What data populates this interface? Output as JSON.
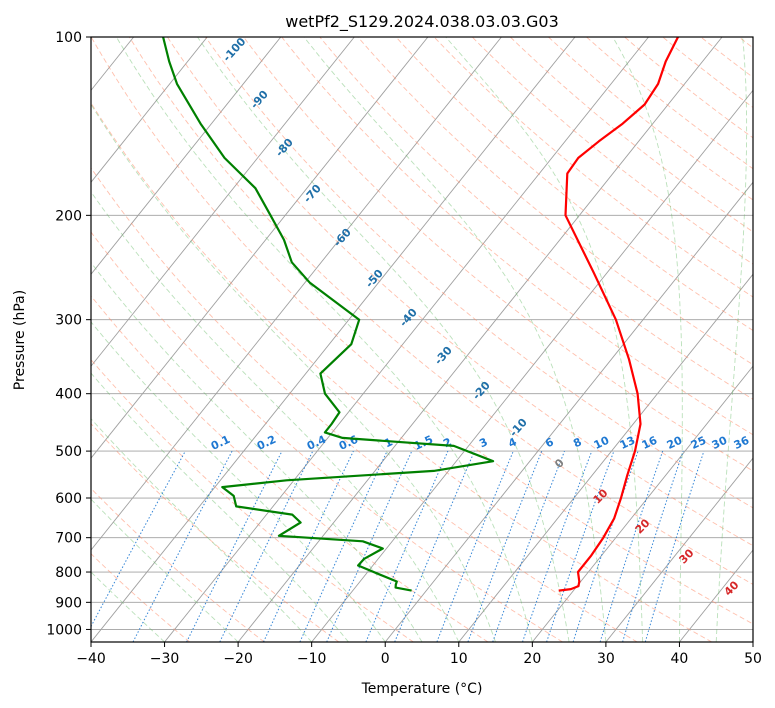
{
  "chart_data": {
    "type": "line",
    "title": "wetPf2_S129.2024.038.03.03.G03",
    "xlabel": "Temperature (°C)",
    "ylabel": "Pressure (hPa)",
    "xlim": [
      -40,
      50
    ],
    "ylim": [
      1050,
      100
    ],
    "y_scale": "log",
    "grid": true,
    "x_ticks": [
      -40,
      -30,
      -20,
      -10,
      0,
      10,
      20,
      30,
      40,
      50
    ],
    "y_ticks": [
      100,
      200,
      300,
      400,
      500,
      600,
      700,
      800,
      900,
      1000
    ],
    "series": [
      {
        "color": "#ff0000",
        "points": [
          {
            "p": 860,
            "t": 18.0
          },
          {
            "p": 855,
            "t": 19.5
          },
          {
            "p": 845,
            "t": 20.2
          },
          {
            "p": 830,
            "t": 19.8
          },
          {
            "p": 800,
            "t": 18.6
          },
          {
            "p": 750,
            "t": 18.6
          },
          {
            "p": 700,
            "t": 18.3
          },
          {
            "p": 650,
            "t": 17.7
          },
          {
            "p": 600,
            "t": 16.4
          },
          {
            "p": 550,
            "t": 14.8
          },
          {
            "p": 500,
            "t": 13.2
          },
          {
            "p": 450,
            "t": 11.0
          },
          {
            "p": 400,
            "t": 7.3
          },
          {
            "p": 350,
            "t": 2.4
          },
          {
            "p": 300,
            "t": -3.7
          },
          {
            "p": 250,
            "t": -11.8
          },
          {
            "p": 200,
            "t": -21.9
          },
          {
            "p": 170,
            "t": -26.2
          },
          {
            "p": 160,
            "t": -26.4
          },
          {
            "p": 150,
            "t": -25.4
          },
          {
            "p": 140,
            "t": -24.1
          },
          {
            "p": 130,
            "t": -23.2
          },
          {
            "p": 120,
            "t": -23.6
          },
          {
            "p": 110,
            "t": -25.0
          },
          {
            "p": 100,
            "t": -26.0
          }
        ]
      },
      {
        "color": "#008000",
        "points": [
          {
            "p": 860,
            "t": -2.0
          },
          {
            "p": 850,
            "t": -4.5
          },
          {
            "p": 840,
            "t": -4.8
          },
          {
            "p": 830,
            "t": -5.0
          },
          {
            "p": 810,
            "t": -7.8
          },
          {
            "p": 780,
            "t": -12.0
          },
          {
            "p": 760,
            "t": -11.9
          },
          {
            "p": 730,
            "t": -10.5
          },
          {
            "p": 710,
            "t": -14.0
          },
          {
            "p": 695,
            "t": -26.0
          },
          {
            "p": 660,
            "t": -24.5
          },
          {
            "p": 640,
            "t": -26.5
          },
          {
            "p": 620,
            "t": -35.0
          },
          {
            "p": 595,
            "t": -36.5
          },
          {
            "p": 575,
            "t": -39.0
          },
          {
            "p": 560,
            "t": -31.0
          },
          {
            "p": 540,
            "t": -12.0
          },
          {
            "p": 520,
            "t": -5.0
          },
          {
            "p": 490,
            "t": -12.0
          },
          {
            "p": 475,
            "t": -28.0
          },
          {
            "p": 465,
            "t": -31.0
          },
          {
            "p": 450,
            "t": -31.0
          },
          {
            "p": 430,
            "t": -31.2
          },
          {
            "p": 400,
            "t": -35.2
          },
          {
            "p": 370,
            "t": -38.0
          },
          {
            "p": 330,
            "t": -37.0
          },
          {
            "p": 300,
            "t": -38.6
          },
          {
            "p": 260,
            "t": -49.3
          },
          {
            "p": 240,
            "t": -54.0
          },
          {
            "p": 220,
            "t": -57.5
          },
          {
            "p": 200,
            "t": -62.0
          },
          {
            "p": 180,
            "t": -67.0
          },
          {
            "p": 160,
            "t": -74.5
          },
          {
            "p": 140,
            "t": -81.5
          },
          {
            "p": 120,
            "t": -89.0
          },
          {
            "p": 110,
            "t": -92.5
          },
          {
            "p": 100,
            "t": -96.0
          }
        ]
      }
    ],
    "dry_adiabat_labels": [
      "-100",
      "-90",
      "-80",
      "-70",
      "-60",
      "-50",
      "-40",
      "-30",
      "-20",
      "-10"
    ],
    "mixing_ratio_labels": [
      "0.1",
      "0.2",
      "0.4",
      "0.6",
      "1",
      "1.5",
      "2",
      "3",
      "4",
      "6",
      "8",
      "10",
      "13",
      "16",
      "20",
      "25",
      "30",
      "36"
    ],
    "moist_adiabat_labels": [
      "0",
      "10",
      "20",
      "30",
      "40"
    ],
    "colors": {
      "isotherm_grid": "#a0a0a0",
      "dry_adiabat": "#ff8c69",
      "moist_adiabat": "#66bb66",
      "mixing_ratio": "#1e78d2",
      "dry_label": "#1f6fa8",
      "moist_label": "#d62728",
      "zero_label": "#808080"
    }
  }
}
